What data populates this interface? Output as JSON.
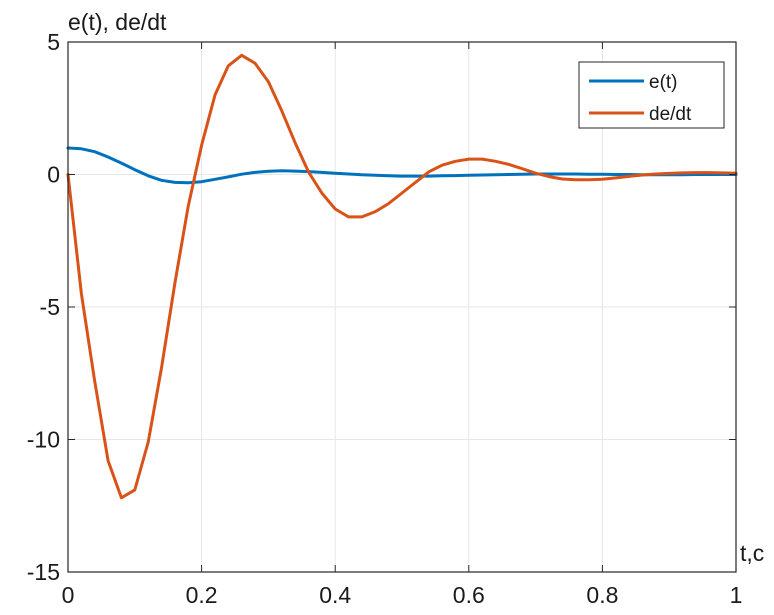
{
  "chart_data": {
    "type": "line",
    "ylabel": "e(t), de/dt",
    "xlabel": "t,c",
    "xlim": [
      0,
      1
    ],
    "ylim": [
      -15,
      5
    ],
    "x_ticks": [
      0,
      0.2,
      0.4,
      0.6,
      0.8,
      1
    ],
    "x_tick_labels": [
      "0",
      "0.2",
      "0.4",
      "0.6",
      "0.8",
      "1"
    ],
    "y_ticks": [
      -15,
      -10,
      -5,
      0,
      5
    ],
    "y_tick_labels": [
      "-15",
      "-10",
      "-5",
      "0",
      "5"
    ],
    "grid": true,
    "legend_position": "top-right",
    "series": [
      {
        "name": "e(t)",
        "color": "#0072BD",
        "x": [
          0,
          0.02,
          0.04,
          0.06,
          0.08,
          0.1,
          0.12,
          0.14,
          0.16,
          0.18,
          0.2,
          0.22,
          0.24,
          0.26,
          0.28,
          0.3,
          0.32,
          0.34,
          0.36,
          0.38,
          0.4,
          0.42,
          0.44,
          0.46,
          0.48,
          0.5,
          0.52,
          0.54,
          0.56,
          0.58,
          0.6,
          0.62,
          0.64,
          0.66,
          0.68,
          0.7,
          0.72,
          0.74,
          0.76,
          0.78,
          0.8,
          0.82,
          0.84,
          0.86,
          0.88,
          0.9,
          0.92,
          0.94,
          0.96,
          0.98,
          1
        ],
        "y": [
          1,
          0.97,
          0.86,
          0.66,
          0.43,
          0.18,
          -0.05,
          -0.22,
          -0.3,
          -0.31,
          -0.27,
          -0.18,
          -0.09,
          0.01,
          0.08,
          0.12,
          0.14,
          0.13,
          0.11,
          0.08,
          0.05,
          0.02,
          -0.01,
          -0.03,
          -0.05,
          -0.06,
          -0.06,
          -0.06,
          -0.05,
          -0.04,
          -0.03,
          -0.02,
          -0.01,
          0,
          0.01,
          0.02,
          0.02,
          0.02,
          0.02,
          0.01,
          0.01,
          0,
          0,
          -0.01,
          -0.01,
          -0.01,
          -0.01,
          0,
          0,
          0,
          0
        ]
      },
      {
        "name": "de/dt",
        "color": "#D95319",
        "x": [
          0,
          0.02,
          0.04,
          0.06,
          0.08,
          0.1,
          0.12,
          0.14,
          0.16,
          0.18,
          0.2,
          0.22,
          0.24,
          0.26,
          0.28,
          0.3,
          0.32,
          0.34,
          0.36,
          0.38,
          0.4,
          0.42,
          0.44,
          0.46,
          0.48,
          0.5,
          0.52,
          0.54,
          0.56,
          0.58,
          0.6,
          0.62,
          0.64,
          0.66,
          0.68,
          0.7,
          0.72,
          0.74,
          0.76,
          0.78,
          0.8,
          0.82,
          0.84,
          0.86,
          0.88,
          0.9,
          0.92,
          0.94,
          0.96,
          0.98,
          1
        ],
        "y": [
          0,
          -4.5,
          -7.8,
          -10.8,
          -12.2,
          -11.9,
          -10.1,
          -7.3,
          -4.1,
          -1.2,
          1.1,
          3,
          4.1,
          4.5,
          4.2,
          3.5,
          2.4,
          1.2,
          0.1,
          -0.7,
          -1.3,
          -1.6,
          -1.6,
          -1.4,
          -1.1,
          -0.7,
          -0.3,
          0.1,
          0.35,
          0.5,
          0.58,
          0.58,
          0.5,
          0.38,
          0.22,
          0.05,
          -0.08,
          -0.17,
          -0.2,
          -0.2,
          -0.18,
          -0.13,
          -0.07,
          -0.02,
          0.02,
          0.04,
          0.06,
          0.07,
          0.07,
          0.06,
          0.05
        ]
      }
    ]
  }
}
